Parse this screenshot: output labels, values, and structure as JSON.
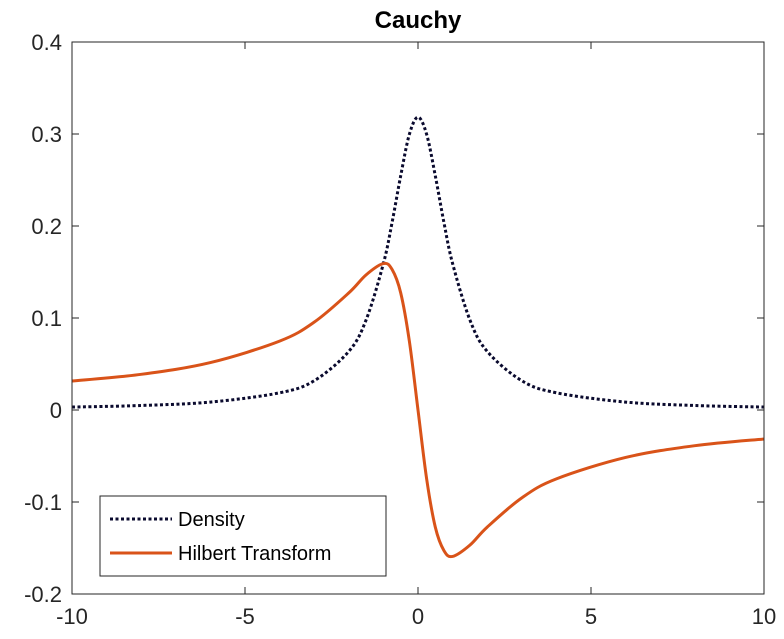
{
  "chart_data": {
    "type": "line",
    "title": "Cauchy",
    "xlabel": "",
    "ylabel": "",
    "xlim": [
      -10,
      10
    ],
    "ylim": [
      -0.2,
      0.4
    ],
    "xticks": [
      -10,
      -5,
      0,
      5,
      10
    ],
    "xtick_labels": [
      "-10",
      "-5",
      "0",
      "5",
      "10"
    ],
    "yticks": [
      -0.2,
      -0.1,
      0,
      0.1,
      0.2,
      0.3,
      0.4
    ],
    "ytick_labels": [
      "-0.2",
      "-0.1",
      "0",
      "0.1",
      "0.2",
      "0.3",
      "0.4"
    ],
    "grid": false,
    "legend_position": "bottom-left",
    "x": [
      -10,
      -8,
      -6,
      -4,
      -3,
      -2,
      -1.5,
      -1,
      -0.75,
      -0.5,
      -0.25,
      0,
      0.25,
      0.5,
      0.75,
      1,
      1.5,
      2,
      3,
      4,
      6,
      8,
      10
    ],
    "series": [
      {
        "name": "Density",
        "style": "dotted",
        "color": "#0a0a2e",
        "values": [
          0.0032,
          0.0049,
          0.0086,
          0.0187,
          0.0318,
          0.0637,
          0.0979,
          0.1592,
          0.2037,
          0.2546,
          0.2996,
          0.3183,
          0.2996,
          0.2546,
          0.2037,
          0.1592,
          0.0979,
          0.0637,
          0.0318,
          0.0187,
          0.0086,
          0.0049,
          0.0032
        ]
      },
      {
        "name": "Hilbert Transform",
        "style": "solid",
        "color": "#d95319",
        "values": [
          0.0315,
          0.0388,
          0.0516,
          0.0749,
          0.0955,
          0.1273,
          0.1469,
          0.1592,
          0.1528,
          0.1273,
          0.0749,
          0.0,
          -0.0749,
          -0.1273,
          -0.1528,
          -0.1592,
          -0.1469,
          -0.1273,
          -0.0955,
          -0.0749,
          -0.0516,
          -0.0388,
          -0.0315
        ]
      }
    ]
  }
}
